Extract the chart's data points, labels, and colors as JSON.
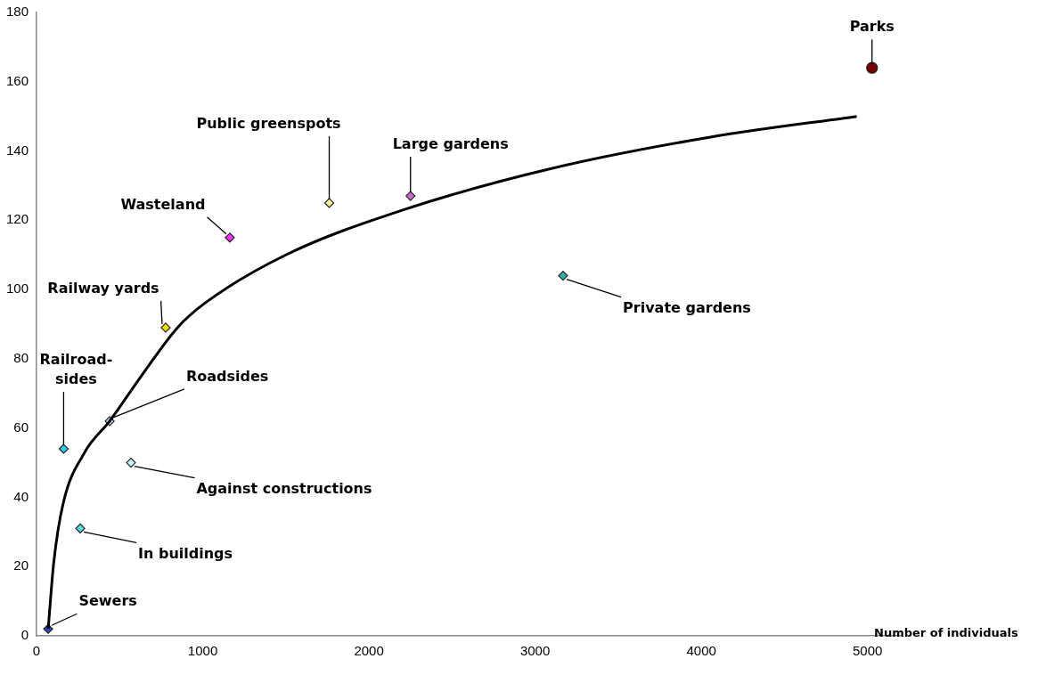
{
  "chart_data": {
    "type": "scatter",
    "xlabel": "Number of individuals",
    "xlim": [
      0,
      5200
    ],
    "ylim": [
      0,
      180
    ],
    "xticks": [
      0,
      1000,
      2000,
      3000,
      4000,
      5000
    ],
    "yticks": [
      0,
      20,
      40,
      60,
      80,
      100,
      120,
      140,
      160,
      180
    ],
    "series": [
      {
        "type": "line",
        "color": "#000000",
        "marker": "none",
        "line_style": "solid",
        "x": [
          70,
          103,
          159,
          290,
          440,
          630,
          848,
          1011,
          1500,
          2207,
          3103,
          4054,
          4935
        ],
        "values": [
          2,
          21,
          38,
          53,
          62,
          75,
          89,
          96,
          110,
          123,
          135,
          144,
          150
        ]
      },
      {
        "type": "scatter",
        "marker": "diamond",
        "x": [
          70,
          163,
          440,
          263,
          568,
          777,
          1163,
          1761,
          2250,
          3168
        ],
        "values": [
          2,
          54,
          62,
          31,
          50,
          89,
          115,
          125,
          127,
          104
        ],
        "colors": [
          "#3344cc",
          "#33ccee",
          "#bbd6ff",
          "#55dddd",
          "#c8f0f0",
          "#eedd00",
          "#ff33ff",
          "#ffee99",
          "#cc66cc",
          "#33aaaa"
        ]
      },
      {
        "type": "scatter",
        "marker": "circle",
        "x": [
          5027
        ],
        "values": [
          164
        ],
        "colors": [
          "#770000"
        ]
      }
    ],
    "annotations": [
      {
        "text": "Sewers",
        "x": 70,
        "y": 2
      },
      {
        "text": "Railroad-sides",
        "x": 163,
        "y": 54
      },
      {
        "text": "Roadsides",
        "x": 440,
        "y": 62
      },
      {
        "text": "In buildings",
        "x": 263,
        "y": 31
      },
      {
        "text": "Against constructions",
        "x": 568,
        "y": 50
      },
      {
        "text": "Railway yards",
        "x": 777,
        "y": 89
      },
      {
        "text": "Wasteland",
        "x": 1163,
        "y": 115
      },
      {
        "text": "Public greenspots",
        "x": 1761,
        "y": 125
      },
      {
        "text": "Large gardens",
        "x": 2250,
        "y": 127
      },
      {
        "text": "Private gardens",
        "x": 3168,
        "y": 104
      },
      {
        "text": "Parks",
        "x": 5027,
        "y": 164
      }
    ]
  }
}
